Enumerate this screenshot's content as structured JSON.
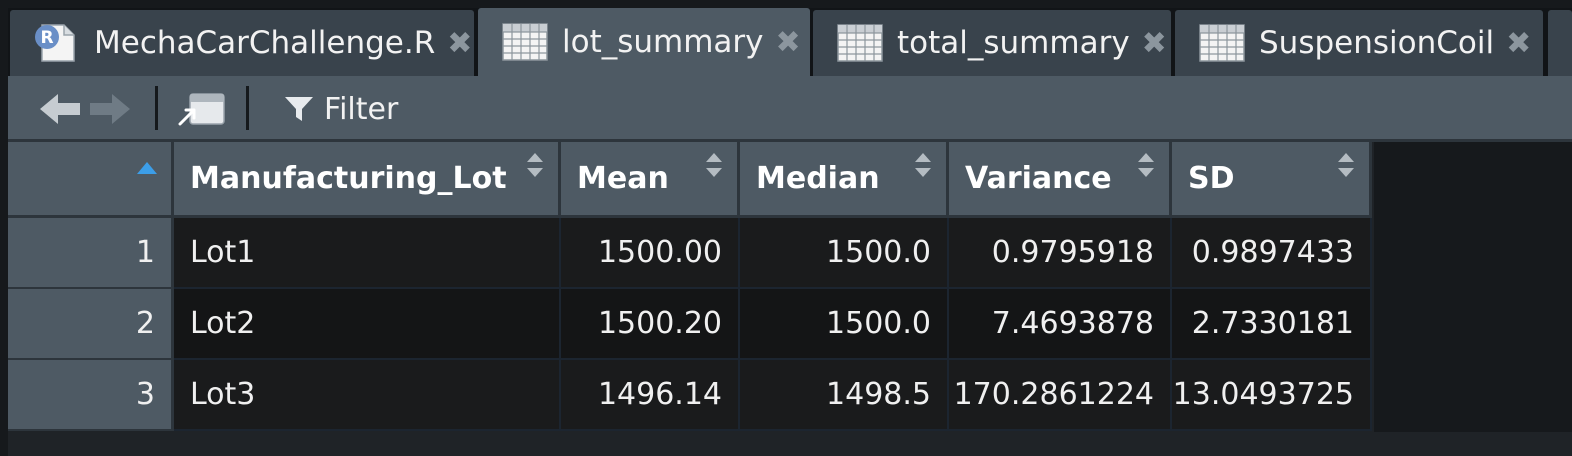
{
  "tabs": [
    {
      "label": "MechaCarChallenge.R",
      "icon": "r-script-icon",
      "active": false
    },
    {
      "label": "lot_summary",
      "icon": "table-icon",
      "active": true
    },
    {
      "label": "total_summary",
      "icon": "table-icon",
      "active": false
    },
    {
      "label": "SuspensionCoil",
      "icon": "table-icon",
      "active": false
    }
  ],
  "toolbar": {
    "filter_label": "Filter"
  },
  "table": {
    "columns": [
      "Manufacturing_Lot",
      "Mean",
      "Median",
      "Variance",
      "SD"
    ],
    "rows": [
      {
        "num": "1",
        "lot": "Lot1",
        "mean": "1500.00",
        "median": "1500.0",
        "variance": "0.9795918",
        "sd": "0.9897433"
      },
      {
        "num": "2",
        "lot": "Lot2",
        "mean": "1500.20",
        "median": "1500.0",
        "variance": "7.4693878",
        "sd": "2.7330181"
      },
      {
        "num": "3",
        "lot": "Lot3",
        "mean": "1496.14",
        "median": "1498.5",
        "variance": "170.2861224",
        "sd": "13.0493725"
      }
    ]
  },
  "colors": {
    "tab_active": "#4e5a64",
    "tab_inactive": "#39434c",
    "toolbar": "#4e5a64",
    "sort_accent": "#3c9ee8",
    "row_odd": "#1a1b1c",
    "row_even": "#141516"
  }
}
